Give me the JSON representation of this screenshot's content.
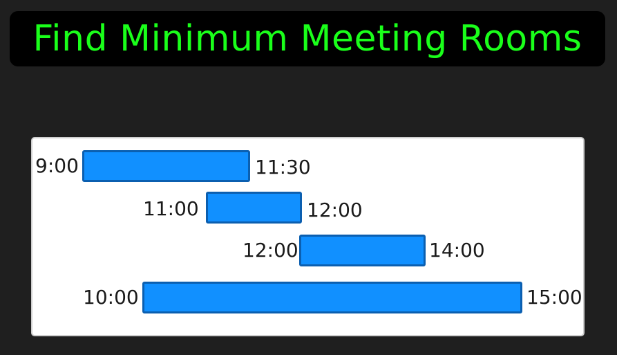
{
  "title": "Find Minimum Meeting Rooms",
  "meetings": [
    {
      "start": "9:00",
      "end": "11:30"
    },
    {
      "start": "11:00",
      "end": "12:00"
    },
    {
      "start": "12:00",
      "end": "14:00"
    },
    {
      "start": "10:00",
      "end": "15:00"
    }
  ],
  "colors": {
    "background": "#1f1f1f",
    "title_bg": "#000000",
    "title_text": "#1aff1a",
    "bar_fill": "#1190ff",
    "bar_border": "#0b5fb0",
    "panel_bg": "#ffffff"
  }
}
